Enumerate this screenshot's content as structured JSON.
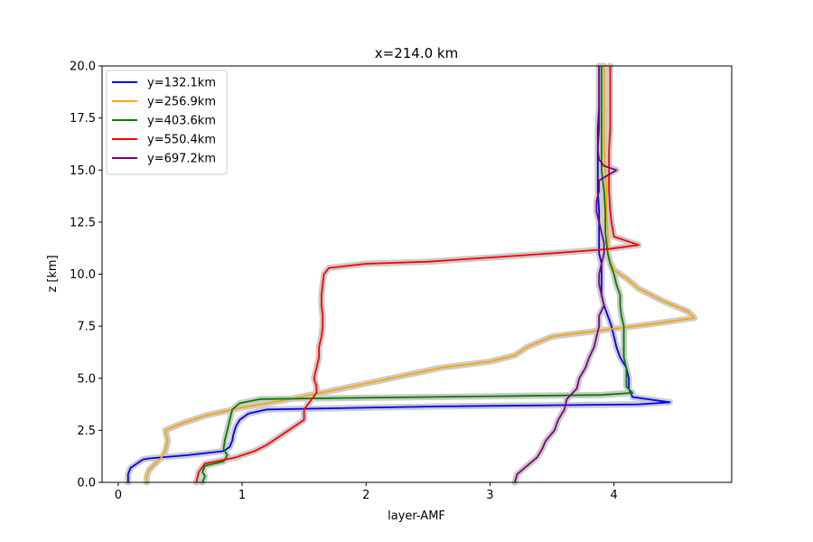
{
  "chart_data": {
    "type": "line",
    "title": "x=214.0 km",
    "xlabel": "layer-AMF",
    "ylabel": "z [km]",
    "xlim": [
      -0.13,
      4.95
    ],
    "ylim": [
      0,
      20
    ],
    "xticks": [
      0,
      1,
      2,
      3,
      4
    ],
    "xtick_labels": [
      "0",
      "1",
      "2",
      "3",
      "4"
    ],
    "yticks": [
      0,
      2.5,
      5,
      7.5,
      10,
      12.5,
      15,
      17.5,
      20
    ],
    "ytick_labels": [
      "0.0",
      "2.5",
      "5.0",
      "7.5",
      "10.0",
      "12.5",
      "15.0",
      "17.5",
      "20.0"
    ],
    "grid": false,
    "legend_position": "top-left",
    "uncertainty_band_color": "#cccccc",
    "series": [
      {
        "name": "y=132.1km",
        "color": "#0000ff",
        "points": [
          [
            0.08,
            0
          ],
          [
            0.08,
            0.4
          ],
          [
            0.1,
            0.7
          ],
          [
            0.15,
            0.9
          ],
          [
            0.2,
            1.1
          ],
          [
            0.25,
            1.15
          ],
          [
            0.55,
            1.3
          ],
          [
            0.85,
            1.5
          ],
          [
            0.9,
            1.7
          ],
          [
            0.92,
            2.0
          ],
          [
            0.93,
            2.3
          ],
          [
            0.95,
            2.7
          ],
          [
            0.98,
            3.0
          ],
          [
            1.05,
            3.3
          ],
          [
            1.2,
            3.5
          ],
          [
            2.6,
            3.65
          ],
          [
            4.2,
            3.75
          ],
          [
            4.45,
            3.85
          ],
          [
            4.15,
            4.1
          ],
          [
            4.12,
            4.5
          ],
          [
            4.12,
            5.0
          ],
          [
            4.1,
            5.5
          ],
          [
            4.05,
            6.0
          ],
          [
            4.02,
            6.5
          ],
          [
            4.0,
            7.0
          ],
          [
            3.98,
            7.5
          ],
          [
            3.95,
            8.0
          ],
          [
            3.92,
            8.5
          ],
          [
            3.9,
            9.0
          ],
          [
            3.9,
            9.5
          ],
          [
            3.9,
            10.0
          ],
          [
            3.9,
            10.5
          ],
          [
            3.88,
            11.0
          ],
          [
            3.88,
            11.5
          ],
          [
            3.88,
            12.0
          ],
          [
            3.88,
            13.0
          ],
          [
            3.87,
            14.0
          ],
          [
            3.87,
            15.0
          ],
          [
            3.87,
            16.0
          ],
          [
            3.87,
            17.0
          ],
          [
            3.88,
            18.0
          ],
          [
            3.88,
            19.0
          ],
          [
            3.88,
            20.0
          ]
        ]
      },
      {
        "name": "y=256.9km",
        "color": "#ffa500",
        "points": [
          [
            0.23,
            0
          ],
          [
            0.23,
            0.3
          ],
          [
            0.25,
            0.6
          ],
          [
            0.3,
            0.9
          ],
          [
            0.35,
            1.2
          ],
          [
            0.38,
            1.5
          ],
          [
            0.4,
            2.0
          ],
          [
            0.38,
            2.5
          ],
          [
            0.5,
            2.8
          ],
          [
            0.7,
            3.2
          ],
          [
            1.0,
            3.6
          ],
          [
            1.3,
            3.9
          ],
          [
            1.55,
            4.2
          ],
          [
            1.8,
            4.5
          ],
          [
            2.2,
            5.0
          ],
          [
            2.6,
            5.5
          ],
          [
            3.0,
            5.8
          ],
          [
            3.2,
            6.1
          ],
          [
            3.3,
            6.5
          ],
          [
            3.5,
            7.0
          ],
          [
            3.9,
            7.3
          ],
          [
            4.3,
            7.6
          ],
          [
            4.65,
            7.9
          ],
          [
            4.6,
            8.2
          ],
          [
            4.4,
            8.7
          ],
          [
            4.2,
            9.3
          ],
          [
            4.1,
            9.8
          ],
          [
            4.0,
            10.2
          ],
          [
            3.97,
            10.6
          ],
          [
            3.95,
            11.0
          ],
          [
            3.95,
            11.5
          ],
          [
            3.95,
            12.0
          ],
          [
            3.94,
            13.0
          ],
          [
            3.94,
            14.0
          ],
          [
            3.93,
            15.0
          ],
          [
            3.92,
            16.0
          ],
          [
            3.92,
            17.0
          ],
          [
            3.92,
            18.0
          ],
          [
            3.92,
            19.0
          ],
          [
            3.92,
            20.0
          ]
        ]
      },
      {
        "name": "y=403.6km",
        "color": "#008000",
        "points": [
          [
            0.68,
            0
          ],
          [
            0.7,
            0.3
          ],
          [
            0.68,
            0.5
          ],
          [
            0.7,
            0.8
          ],
          [
            0.85,
            1.0
          ],
          [
            0.88,
            1.3
          ],
          [
            0.85,
            1.6
          ],
          [
            0.86,
            2.0
          ],
          [
            0.88,
            2.5
          ],
          [
            0.9,
            3.0
          ],
          [
            0.92,
            3.5
          ],
          [
            0.98,
            3.8
          ],
          [
            1.15,
            4.0
          ],
          [
            2.5,
            4.1
          ],
          [
            3.9,
            4.2
          ],
          [
            4.15,
            4.3
          ],
          [
            4.1,
            4.6
          ],
          [
            4.1,
            5.0
          ],
          [
            4.1,
            5.5
          ],
          [
            4.08,
            6.0
          ],
          [
            4.08,
            6.5
          ],
          [
            4.08,
            7.0
          ],
          [
            4.08,
            7.5
          ],
          [
            4.06,
            8.0
          ],
          [
            4.05,
            8.5
          ],
          [
            4.05,
            9.0
          ],
          [
            4.02,
            9.5
          ],
          [
            4.0,
            10.0
          ],
          [
            3.97,
            10.5
          ],
          [
            3.95,
            11.0
          ],
          [
            3.94,
            11.5
          ],
          [
            3.93,
            12.0
          ],
          [
            3.93,
            13.0
          ],
          [
            3.92,
            14.0
          ],
          [
            3.9,
            15.0
          ],
          [
            3.9,
            16.0
          ],
          [
            3.9,
            17.0
          ],
          [
            3.9,
            18.0
          ],
          [
            3.9,
            19.0
          ],
          [
            3.9,
            20.0
          ]
        ]
      },
      {
        "name": "y=550.4km",
        "color": "#ff0000",
        "points": [
          [
            0.63,
            0
          ],
          [
            0.65,
            0.5
          ],
          [
            0.7,
            0.9
          ],
          [
            0.95,
            1.2
          ],
          [
            1.1,
            1.5
          ],
          [
            1.2,
            1.8
          ],
          [
            1.3,
            2.2
          ],
          [
            1.4,
            2.6
          ],
          [
            1.5,
            3.0
          ],
          [
            1.5,
            3.5
          ],
          [
            1.55,
            3.9
          ],
          [
            1.6,
            4.3
          ],
          [
            1.6,
            4.6
          ],
          [
            1.58,
            5.0
          ],
          [
            1.6,
            5.5
          ],
          [
            1.62,
            6.0
          ],
          [
            1.62,
            6.5
          ],
          [
            1.64,
            7.0
          ],
          [
            1.65,
            7.5
          ],
          [
            1.65,
            8.0
          ],
          [
            1.64,
            8.5
          ],
          [
            1.64,
            9.0
          ],
          [
            1.65,
            9.5
          ],
          [
            1.66,
            10.0
          ],
          [
            1.7,
            10.3
          ],
          [
            2.0,
            10.5
          ],
          [
            2.5,
            10.6
          ],
          [
            3.0,
            10.8
          ],
          [
            3.5,
            11.0
          ],
          [
            3.95,
            11.2
          ],
          [
            4.2,
            11.4
          ],
          [
            4.0,
            11.8
          ],
          [
            3.98,
            12.5
          ],
          [
            3.97,
            13.0
          ],
          [
            3.96,
            14.0
          ],
          [
            3.96,
            15.0
          ],
          [
            3.96,
            16.0
          ],
          [
            3.97,
            17.0
          ],
          [
            3.97,
            18.0
          ],
          [
            3.97,
            19.0
          ],
          [
            3.97,
            20.0
          ]
        ]
      },
      {
        "name": "y=697.2km",
        "color": "#800080",
        "points": [
          [
            3.2,
            0
          ],
          [
            3.22,
            0.4
          ],
          [
            3.3,
            0.8
          ],
          [
            3.38,
            1.2
          ],
          [
            3.42,
            1.6
          ],
          [
            3.45,
            2.0
          ],
          [
            3.52,
            2.5
          ],
          [
            3.55,
            3.0
          ],
          [
            3.6,
            3.5
          ],
          [
            3.62,
            4.0
          ],
          [
            3.7,
            4.5
          ],
          [
            3.72,
            5.0
          ],
          [
            3.77,
            5.5
          ],
          [
            3.8,
            6.0
          ],
          [
            3.84,
            6.5
          ],
          [
            3.86,
            7.0
          ],
          [
            3.88,
            7.5
          ],
          [
            3.88,
            8.0
          ],
          [
            3.92,
            8.5
          ],
          [
            3.9,
            9.0
          ],
          [
            3.88,
            9.5
          ],
          [
            3.88,
            10.0
          ],
          [
            3.9,
            10.5
          ],
          [
            3.92,
            11.0
          ],
          [
            3.92,
            11.5
          ],
          [
            3.9,
            12.0
          ],
          [
            3.88,
            12.5
          ],
          [
            3.86,
            13.0
          ],
          [
            3.86,
            13.5
          ],
          [
            3.88,
            14.0
          ],
          [
            3.88,
            14.5
          ],
          [
            4.02,
            15.0
          ],
          [
            3.92,
            15.2
          ],
          [
            3.88,
            15.5
          ],
          [
            3.87,
            16.0
          ],
          [
            3.88,
            17.0
          ],
          [
            3.88,
            18.0
          ],
          [
            3.88,
            19.0
          ],
          [
            3.88,
            20.0
          ]
        ]
      }
    ]
  }
}
